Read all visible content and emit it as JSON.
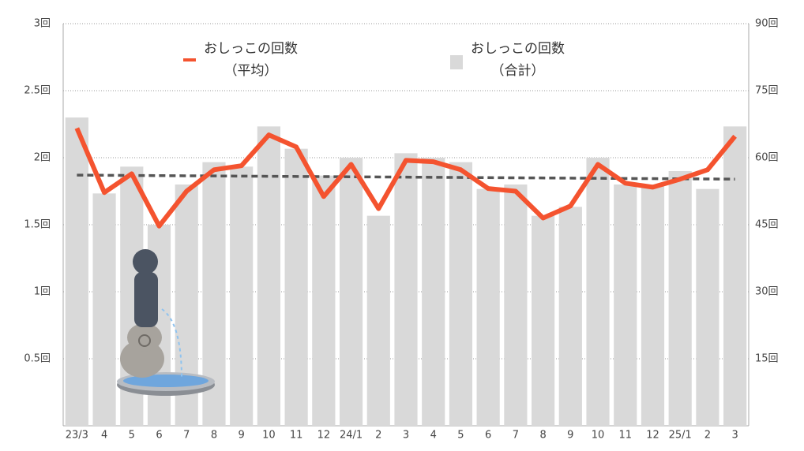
{
  "chart_data": {
    "type": "bar+line",
    "categories": [
      "23/3",
      "4",
      "5",
      "6",
      "7",
      "8",
      "9",
      "10",
      "11",
      "12",
      "24/1",
      "2",
      "3",
      "4",
      "5",
      "6",
      "7",
      "8",
      "9",
      "10",
      "11",
      "12",
      "25/1",
      "2",
      "3"
    ],
    "series": [
      {
        "name": "おしっこの回数\n（平均）",
        "type": "line",
        "color": "#f4532f",
        "values": [
          2.22,
          1.74,
          1.88,
          1.49,
          1.75,
          1.91,
          1.94,
          2.17,
          2.08,
          1.71,
          1.95,
          1.62,
          1.98,
          1.97,
          1.91,
          1.77,
          1.75,
          1.55,
          1.64,
          1.95,
          1.81,
          1.78,
          1.84,
          1.91,
          2.16
        ]
      },
      {
        "name": "おしっこの回数\n（合計）",
        "type": "bar",
        "color": "#d9d9d9",
        "axis": "y2",
        "values": [
          69,
          52,
          58,
          45,
          54,
          59,
          58,
          67,
          62,
          56,
          60,
          47,
          61,
          60,
          59,
          53,
          54,
          47,
          49,
          60,
          54,
          54,
          57,
          53,
          67
        ]
      }
    ],
    "trendline": {
      "color": "#555555",
      "values": [
        1.87,
        1.84
      ]
    },
    "ylim": [
      0,
      3
    ],
    "yticks": [
      {
        "value": 0.5,
        "label": "0.5回"
      },
      {
        "value": 1,
        "label": "1回"
      },
      {
        "value": 1.5,
        "label": "1.5回"
      },
      {
        "value": 2,
        "label": "2回"
      },
      {
        "value": 2.5,
        "label": "2.5回"
      },
      {
        "value": 3,
        "label": "3回"
      }
    ],
    "y2lim": [
      0,
      90
    ],
    "y2ticks": [
      {
        "value": 15,
        "label": "15回"
      },
      {
        "value": 30,
        "label": "30回"
      },
      {
        "value": 45,
        "label": "45回"
      },
      {
        "value": 60,
        "label": "60回"
      },
      {
        "value": 75,
        "label": "75回"
      },
      {
        "value": 90,
        "label": "90回"
      }
    ],
    "grid": true
  }
}
